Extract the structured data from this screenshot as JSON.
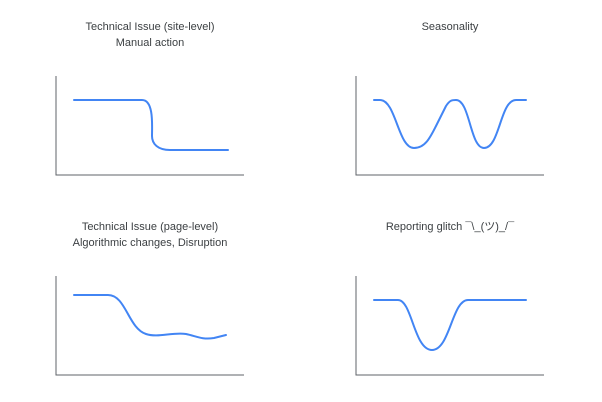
{
  "panels": [
    {
      "title": "Technical Issue (site-level)",
      "subtitle": "Manual action"
    },
    {
      "title": "Seasonality",
      "subtitle": ""
    },
    {
      "title": "Technical Issue (page-level)",
      "subtitle": "Algorithmic changes, Disruption"
    },
    {
      "title": "Reporting glitch ¯\\_(ツ)_/¯",
      "subtitle": ""
    }
  ],
  "colors": {
    "line": "#4285f4",
    "axis": "#5f6368",
    "text": "#3c4043"
  }
}
